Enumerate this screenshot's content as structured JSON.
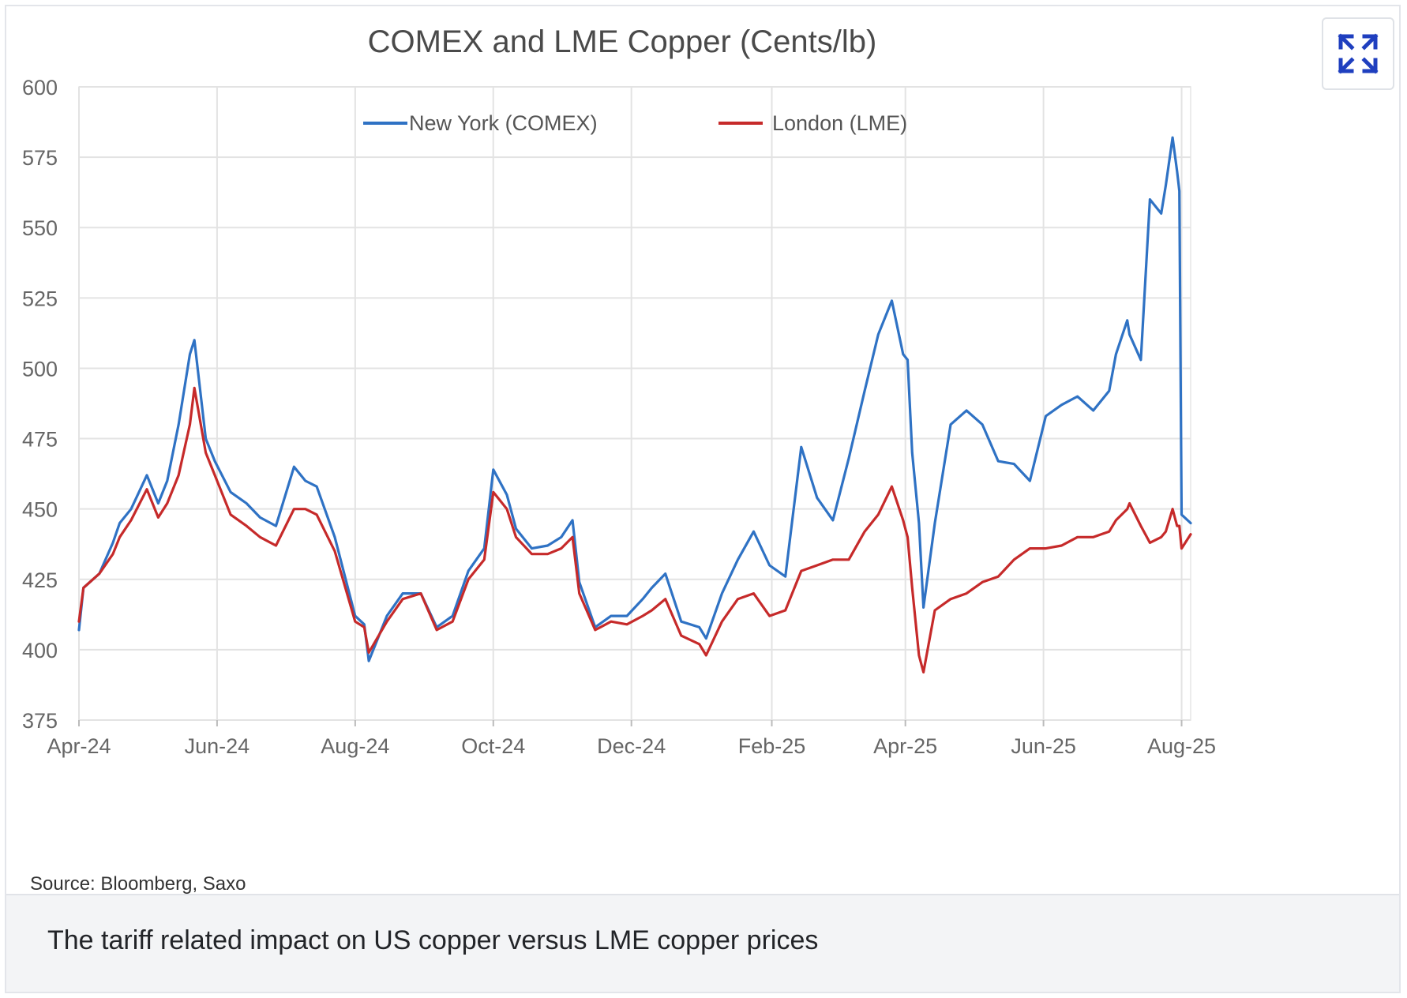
{
  "chart_data": {
    "type": "line",
    "title": "COMEX and LME Copper (Cents/lb)",
    "xlabel": "",
    "ylabel": "",
    "ylim": [
      375,
      600
    ],
    "yticks": [
      600,
      575,
      550,
      525,
      500,
      475,
      450,
      425,
      400,
      375
    ],
    "xlim": [
      "2024-04-01",
      "2025-08-05"
    ],
    "xtick_labels": [
      "Apr-24",
      "Jun-24",
      "Aug-24",
      "Oct-24",
      "Dec-24",
      "Feb-25",
      "Apr-25",
      "Jun-25",
      "Aug-25"
    ],
    "xtick_dates": [
      "2024-04-01",
      "2024-06-01",
      "2024-08-01",
      "2024-10-01",
      "2024-12-01",
      "2025-02-01",
      "2025-04-01",
      "2025-06-01",
      "2025-08-01"
    ],
    "grid": true,
    "legend_position": "top-center",
    "series": [
      {
        "name": "New York (COMEX)",
        "color": "#2f72c4",
        "x": [
          "2024-04-01",
          "2024-04-03",
          "2024-04-10",
          "2024-04-16",
          "2024-04-19",
          "2024-04-24",
          "2024-05-01",
          "2024-05-06",
          "2024-05-10",
          "2024-05-15",
          "2024-05-20",
          "2024-05-22",
          "2024-05-27",
          "2024-05-31",
          "2024-06-07",
          "2024-06-14",
          "2024-06-20",
          "2024-06-27",
          "2024-07-05",
          "2024-07-10",
          "2024-07-15",
          "2024-07-23",
          "2024-08-01",
          "2024-08-05",
          "2024-08-07",
          "2024-08-15",
          "2024-08-22",
          "2024-08-30",
          "2024-09-06",
          "2024-09-13",
          "2024-09-20",
          "2024-09-27",
          "2024-10-01",
          "2024-10-07",
          "2024-10-11",
          "2024-10-18",
          "2024-10-25",
          "2024-10-31",
          "2024-11-05",
          "2024-11-08",
          "2024-11-15",
          "2024-11-22",
          "2024-11-29",
          "2024-12-06",
          "2024-12-10",
          "2024-12-16",
          "2024-12-23",
          "2024-12-31",
          "2025-01-03",
          "2025-01-10",
          "2025-01-17",
          "2025-01-24",
          "2025-01-31",
          "2025-02-07",
          "2025-02-14",
          "2025-02-21",
          "2025-02-28",
          "2025-03-07",
          "2025-03-14",
          "2025-03-20",
          "2025-03-26",
          "2025-03-31",
          "2025-04-02",
          "2025-04-04",
          "2025-04-07",
          "2025-04-09",
          "2025-04-14",
          "2025-04-21",
          "2025-04-28",
          "2025-05-05",
          "2025-05-12",
          "2025-05-19",
          "2025-05-26",
          "2025-06-02",
          "2025-06-09",
          "2025-06-16",
          "2025-06-23",
          "2025-06-30",
          "2025-07-03",
          "2025-07-08",
          "2025-07-09",
          "2025-07-14",
          "2025-07-18",
          "2025-07-23",
          "2025-07-25",
          "2025-07-28",
          "2025-07-30",
          "2025-07-31",
          "2025-08-01",
          "2025-08-05"
        ],
        "values": [
          407,
          422,
          427,
          438,
          445,
          450,
          462,
          452,
          460,
          480,
          505,
          510,
          475,
          467,
          456,
          452,
          447,
          444,
          465,
          460,
          458,
          440,
          412,
          409,
          396,
          412,
          420,
          420,
          408,
          412,
          428,
          436,
          464,
          455,
          443,
          436,
          437,
          440,
          446,
          424,
          408,
          412,
          412,
          418,
          422,
          427,
          410,
          408,
          404,
          420,
          432,
          442,
          430,
          426,
          472,
          454,
          446,
          468,
          492,
          512,
          524,
          505,
          503,
          470,
          445,
          415,
          445,
          480,
          485,
          480,
          467,
          466,
          460,
          483,
          487,
          490,
          485,
          492,
          505,
          517,
          512,
          503,
          560,
          555,
          565,
          582,
          570,
          563,
          448,
          445
        ]
      },
      {
        "name": "London (LME)",
        "color": "#c62a2a",
        "x": [
          "2024-04-01",
          "2024-04-03",
          "2024-04-10",
          "2024-04-16",
          "2024-04-19",
          "2024-04-24",
          "2024-05-01",
          "2024-05-06",
          "2024-05-10",
          "2024-05-15",
          "2024-05-20",
          "2024-05-22",
          "2024-05-27",
          "2024-05-31",
          "2024-06-07",
          "2024-06-14",
          "2024-06-20",
          "2024-06-27",
          "2024-07-05",
          "2024-07-10",
          "2024-07-15",
          "2024-07-23",
          "2024-08-01",
          "2024-08-05",
          "2024-08-07",
          "2024-08-15",
          "2024-08-22",
          "2024-08-30",
          "2024-09-06",
          "2024-09-13",
          "2024-09-20",
          "2024-09-27",
          "2024-10-01",
          "2024-10-07",
          "2024-10-11",
          "2024-10-18",
          "2024-10-25",
          "2024-10-31",
          "2024-11-05",
          "2024-11-08",
          "2024-11-15",
          "2024-11-22",
          "2024-11-29",
          "2024-12-06",
          "2024-12-10",
          "2024-12-16",
          "2024-12-23",
          "2024-12-31",
          "2025-01-03",
          "2025-01-10",
          "2025-01-17",
          "2025-01-24",
          "2025-01-31",
          "2025-02-07",
          "2025-02-14",
          "2025-02-21",
          "2025-02-28",
          "2025-03-07",
          "2025-03-14",
          "2025-03-20",
          "2025-03-26",
          "2025-03-31",
          "2025-04-02",
          "2025-04-04",
          "2025-04-07",
          "2025-04-09",
          "2025-04-14",
          "2025-04-21",
          "2025-04-28",
          "2025-05-05",
          "2025-05-12",
          "2025-05-19",
          "2025-05-26",
          "2025-06-02",
          "2025-06-09",
          "2025-06-16",
          "2025-06-23",
          "2025-06-30",
          "2025-07-03",
          "2025-07-08",
          "2025-07-09",
          "2025-07-14",
          "2025-07-18",
          "2025-07-23",
          "2025-07-25",
          "2025-07-28",
          "2025-07-30",
          "2025-07-31",
          "2025-08-01",
          "2025-08-05"
        ],
        "values": [
          410,
          422,
          427,
          434,
          440,
          446,
          457,
          447,
          452,
          462,
          480,
          493,
          470,
          462,
          448,
          444,
          440,
          437,
          450,
          450,
          448,
          435,
          410,
          408,
          399,
          410,
          418,
          420,
          407,
          410,
          425,
          432,
          456,
          450,
          440,
          434,
          434,
          436,
          440,
          420,
          407,
          410,
          409,
          412,
          414,
          418,
          405,
          402,
          398,
          410,
          418,
          420,
          412,
          414,
          428,
          430,
          432,
          432,
          442,
          448,
          458,
          446,
          440,
          422,
          398,
          392,
          414,
          418,
          420,
          424,
          426,
          432,
          436,
          436,
          437,
          440,
          440,
          442,
          446,
          450,
          452,
          444,
          438,
          440,
          442,
          450,
          444,
          444,
          436,
          441
        ]
      }
    ]
  },
  "expand_button": {
    "icon": "expand-icon",
    "color": "#1f3fbf"
  },
  "source": "Source: Bloomberg, Saxo",
  "caption": "The tariff related impact on US copper versus LME copper prices"
}
